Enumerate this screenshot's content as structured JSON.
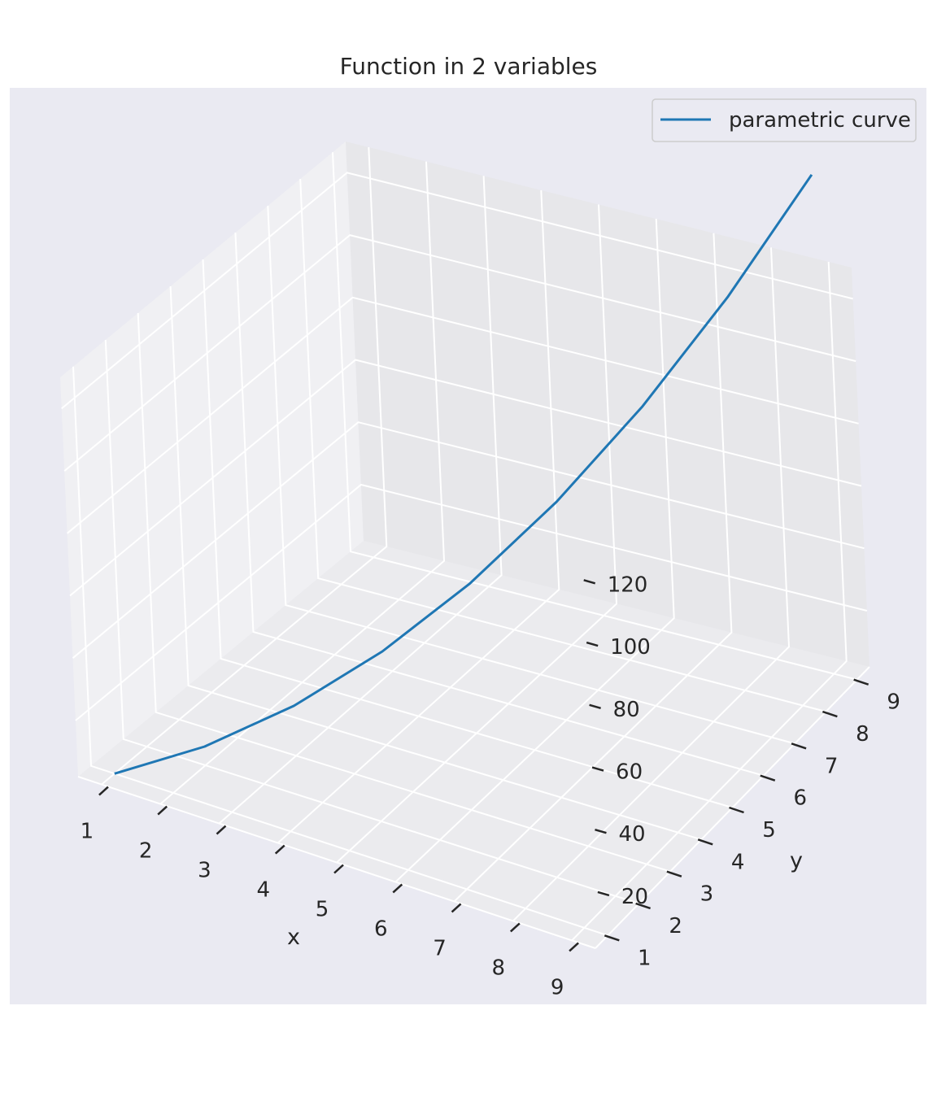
{
  "chart_data": {
    "type": "line",
    "projection": "3d",
    "title": "Function in 2 variables",
    "xlabel": "x",
    "ylabel": "y",
    "zlabel": "",
    "xlim": [
      0.6,
      9.4
    ],
    "ylim": [
      0.6,
      9.4
    ],
    "zlim": [
      2,
      130
    ],
    "x_ticks": [
      1,
      2,
      3,
      4,
      5,
      6,
      7,
      8,
      9
    ],
    "y_ticks": [
      1,
      2,
      3,
      4,
      5,
      6,
      7,
      8,
      9
    ],
    "z_ticks": [
      20,
      40,
      60,
      80,
      100,
      120
    ],
    "grid": true,
    "legend_position": "top-right",
    "series": [
      {
        "name": "parametric curve",
        "color": "#1f77b4",
        "x": [
          1,
          2,
          3,
          4,
          5,
          6,
          7,
          8,
          9
        ],
        "y": [
          1,
          2,
          3,
          4,
          5,
          6,
          7,
          8,
          9
        ],
        "z": [
          2,
          8,
          18,
          32,
          50,
          72,
          98,
          128,
          162
        ]
      }
    ]
  }
}
